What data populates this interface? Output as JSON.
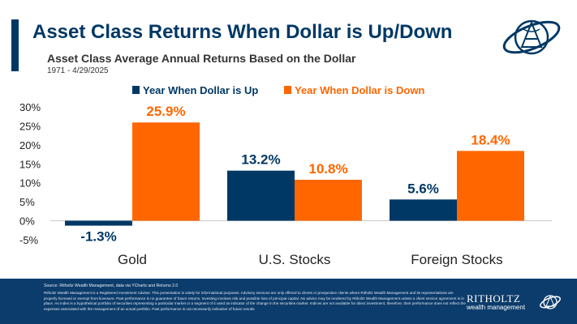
{
  "header": {
    "title": "Asset Class Returns When Dollar is Up/Down",
    "subtitle": "Asset Class Average Annual Returns Based on the Dollar",
    "date_range": "1971 - 4/29/2025"
  },
  "footer": {
    "source": "Source: Ritholtz Wealth Management, data via YCharts and Returns 2.0",
    "disclaimer": "Ritholtz Wealth Management is a Registered Investment Adviser. This presentation is solely for informational purposes. Advisory services are only offered to clients or prospective clients where Ritholtz Wealth Management and its representatives are properly licensed or exempt from licensure. Past performance is no guarantee of future returns. Investing involves risk and possible loss of principal capital. No advice may be rendered by Ritholtz Wealth Management unless a client service agreement is in place. An index is a hypothetical portfolio of securities representing a particular market or a segment of it used as indicator of the change in the securities market. Indices are not available for direct investment, therefore, their performance does not reflect the expenses associated with the management of an actual portfolio. Past performance is not necessarily indicative of future results.",
    "brand_name": "RITHOLTZ",
    "brand_sub": "wealth management"
  },
  "colors": {
    "navy": "#003865",
    "orange": "#ff6600",
    "footer": "#0c3c6b"
  },
  "icons": {
    "top_logo": "ritholtz-globe-logo-icon",
    "bottom_logo": "ritholtz-globe-logo-icon"
  },
  "chart_data": {
    "type": "bar",
    "categories": [
      "Gold",
      "U.S. Stocks",
      "Foreign Stocks"
    ],
    "series": [
      {
        "name": "Year When Dollar is Up",
        "color": "#003865",
        "values": [
          -1.3,
          13.2,
          5.6
        ],
        "labels": [
          "-1.3%",
          "13.2%",
          "5.6%"
        ]
      },
      {
        "name": "Year When Dollar is Down",
        "color": "#ff6600",
        "values": [
          25.9,
          10.8,
          18.4
        ],
        "labels": [
          "25.9%",
          "10.8%",
          "18.4%"
        ]
      }
    ],
    "yticks": [
      30,
      25,
      20,
      15,
      10,
      5,
      0,
      -5
    ],
    "ytick_labels": [
      "30%",
      "25%",
      "20%",
      "15%",
      "10%",
      "5%",
      "0%",
      "-5%"
    ],
    "ylim": [
      -5,
      30
    ],
    "legend_position": "top-center",
    "grid": false
  }
}
